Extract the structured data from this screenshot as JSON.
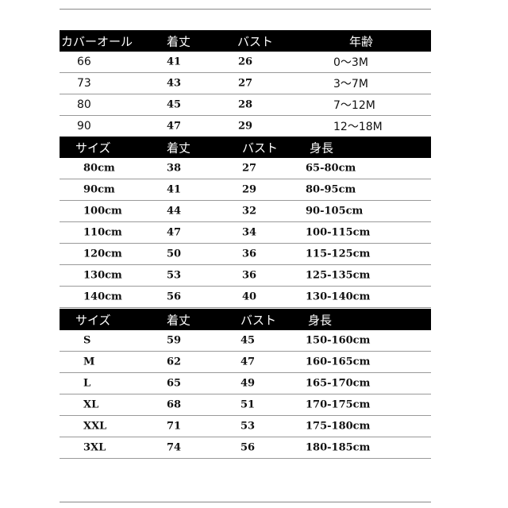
{
  "sections": [
    {
      "headers": [
        "カバーオール",
        "着丈",
        "バスト",
        "年齢"
      ],
      "rows": [
        [
          "66",
          "41",
          "26",
          "0〜3M"
        ],
        [
          "73",
          "43",
          "27",
          "3〜7M"
        ],
        [
          "80",
          "45",
          "28",
          "7〜12M"
        ],
        [
          "90",
          "47",
          "29",
          "12〜18M"
        ]
      ]
    },
    {
      "headers": [
        "サイズ",
        "着丈",
        "バスト",
        "身長"
      ],
      "rows": [
        [
          "80cm",
          "38",
          "27",
          "65-80cm"
        ],
        [
          "90cm",
          "41",
          "29",
          "80-95cm"
        ],
        [
          "100cm",
          "44",
          "32",
          "90-105cm"
        ],
        [
          "110cm",
          "47",
          "34",
          "100-115cm"
        ],
        [
          "120cm",
          "50",
          "36",
          "115-125cm"
        ],
        [
          "130cm",
          "53",
          "36",
          "125-135cm"
        ],
        [
          "140cm",
          "56",
          "40",
          "130-140cm"
        ]
      ]
    },
    {
      "headers": [
        "サイズ",
        "着丈",
        "バスト",
        "身長"
      ],
      "rows": [
        [
          "S",
          "59",
          "45",
          "150-160cm"
        ],
        [
          "M",
          "62",
          "47",
          "160-165cm"
        ],
        [
          "L",
          "65",
          "49",
          "165-170cm"
        ],
        [
          "XL",
          "68",
          "51",
          "170-175cm"
        ],
        [
          "XXL",
          "71",
          "53",
          "175-180cm"
        ],
        [
          "3XL",
          "74",
          "56",
          "180-185cm"
        ]
      ]
    }
  ]
}
